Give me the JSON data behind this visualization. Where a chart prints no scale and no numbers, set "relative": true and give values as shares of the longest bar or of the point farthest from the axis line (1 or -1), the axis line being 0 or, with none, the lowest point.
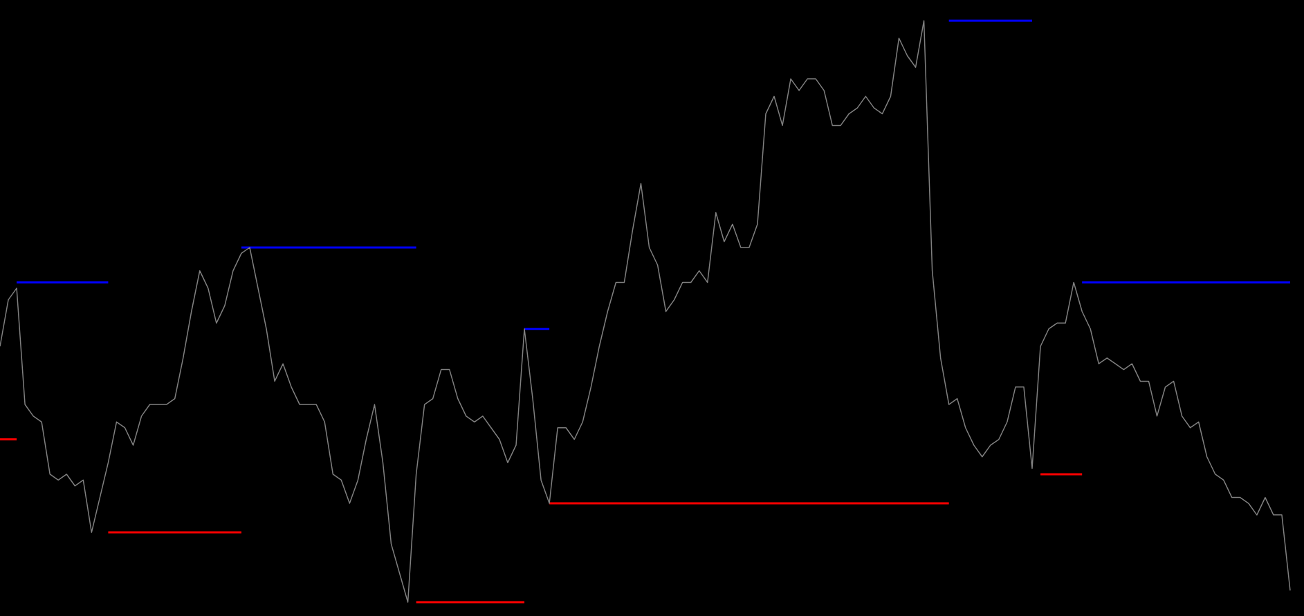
{
  "chart_data": {
    "type": "line",
    "relative": true,
    "tick_labels": false,
    "marker": "none",
    "line_style": "solid",
    "categories": [
      null,
      null,
      null,
      null,
      null,
      null,
      null,
      null,
      null,
      null,
      null,
      null,
      null,
      null,
      null,
      null,
      null,
      null,
      null,
      null,
      null,
      null,
      null,
      null,
      null,
      null,
      null,
      null,
      null,
      null,
      null,
      null,
      null,
      null,
      null,
      null,
      null,
      null,
      null,
      null,
      null,
      null,
      null,
      null,
      null,
      null,
      null,
      null,
      null,
      null,
      null,
      null,
      null,
      null,
      null,
      null,
      null,
      null,
      null,
      null,
      null,
      null,
      null,
      null,
      null,
      null,
      null,
      null,
      null,
      null,
      null,
      null,
      null,
      null,
      null,
      null,
      null,
      null,
      null,
      null,
      null,
      null,
      null,
      null,
      null,
      null,
      null,
      null,
      null,
      null,
      null,
      null,
      null,
      null,
      null,
      null,
      null,
      null,
      null,
      null,
      null,
      null,
      null,
      null,
      null,
      null,
      null,
      null,
      null,
      null,
      null,
      null,
      null,
      null,
      null,
      null,
      null,
      null,
      null,
      null,
      null,
      null,
      null,
      null,
      null,
      null,
      null,
      null,
      null,
      null,
      null,
      null,
      null,
      null,
      null,
      null,
      null,
      null,
      null,
      null,
      null,
      null,
      null,
      null,
      null,
      null,
      null,
      null,
      null,
      null,
      null,
      null,
      null,
      null,
      null,
      null
    ],
    "series": [
      {
        "color": "#808080",
        "values": [
          0.44,
          0.52,
          0.54,
          0.34,
          0.32,
          0.31,
          0.22,
          0.21,
          0.22,
          0.2,
          0.21,
          0.12,
          0.18,
          0.24,
          0.31,
          0.3,
          0.27,
          0.32,
          0.34,
          0.34,
          0.34,
          0.35,
          0.42,
          0.5,
          0.57,
          0.54,
          0.48,
          0.51,
          0.57,
          0.6,
          0.61,
          0.54,
          0.47,
          0.38,
          0.41,
          0.37,
          0.34,
          0.34,
          0.34,
          0.31,
          0.22,
          0.21,
          0.17,
          0.21,
          0.28,
          0.34,
          0.24,
          0.1,
          0.05,
          0,
          0.22,
          0.34,
          0.35,
          0.4,
          0.4,
          0.35,
          0.32,
          0.31,
          0.32,
          0.3,
          0.28,
          0.24,
          0.27,
          0.47,
          0.35,
          0.21,
          0.17,
          0.3,
          0.3,
          0.28,
          0.31,
          0.37,
          0.44,
          0.5,
          0.55,
          0.55,
          0.64,
          0.72,
          0.61,
          0.58,
          0.5,
          0.52,
          0.55,
          0.55,
          0.57,
          0.55,
          0.67,
          0.62,
          0.65,
          0.61,
          0.61,
          0.65,
          0.84,
          0.87,
          0.82,
          0.9,
          0.88,
          0.9,
          0.9,
          0.88,
          0.82,
          0.82,
          0.84,
          0.85,
          0.87,
          0.85,
          0.84,
          0.87,
          0.97,
          0.94,
          0.92,
          1,
          0.57,
          0.42,
          0.34,
          0.35,
          0.3,
          0.27,
          0.25,
          0.27,
          0.28,
          0.31,
          0.37,
          0.37,
          0.23,
          0.44,
          0.47,
          0.48,
          0.48,
          0.55,
          0.5,
          0.47,
          0.41,
          0.42,
          0.41,
          0.4,
          0.41,
          0.38,
          0.38,
          0.32,
          0.37,
          0.38,
          0.32,
          0.3,
          0.31,
          0.25,
          0.22,
          0.21,
          0.18,
          0.18,
          0.17,
          0.15,
          0.18,
          0.15,
          0.15,
          0.02
        ]
      },
      {
        "color": "#0000ff",
        "values": [
          null,
          null,
          0.55,
          0.55,
          0.55,
          0.55,
          0.55,
          0.55,
          0.55,
          0.55,
          0.55,
          0.55,
          0.55,
          0.55,
          null,
          null,
          null,
          null,
          null,
          null,
          null,
          null,
          null,
          null,
          null,
          null,
          null,
          null,
          null,
          0.61,
          0.61,
          0.61,
          0.61,
          0.61,
          0.61,
          0.61,
          0.61,
          0.61,
          0.61,
          0.61,
          0.61,
          0.61,
          0.61,
          0.61,
          0.61,
          0.61,
          0.61,
          0.61,
          0.61,
          0.61,
          0.61,
          null,
          null,
          null,
          null,
          null,
          null,
          null,
          null,
          null,
          null,
          null,
          null,
          0.47,
          0.47,
          0.47,
          0.47,
          null,
          null,
          null,
          null,
          null,
          null,
          null,
          null,
          null,
          null,
          null,
          null,
          null,
          null,
          null,
          null,
          null,
          null,
          null,
          null,
          null,
          null,
          null,
          null,
          null,
          null,
          null,
          null,
          null,
          null,
          null,
          null,
          null,
          null,
          null,
          null,
          null,
          null,
          null,
          null,
          null,
          null,
          null,
          null,
          null,
          null,
          null,
          1,
          1,
          1,
          1,
          1,
          1,
          1,
          1,
          1,
          1,
          1,
          null,
          null,
          null,
          null,
          null,
          0.55,
          0.55,
          0.55,
          0.55,
          0.55,
          0.55,
          0.55,
          0.55,
          0.55,
          0.55,
          0.55,
          0.55,
          0.55,
          0.55,
          0.55,
          0.55,
          0.55,
          0.55,
          0.55,
          0.55,
          0.55,
          0.55,
          0.55,
          0.55,
          0.55,
          0.55
        ]
      },
      {
        "color": "#ff0000",
        "values": [
          0.28,
          0.28,
          0.28,
          null,
          null,
          null,
          null,
          null,
          null,
          null,
          null,
          null,
          null,
          0.12,
          0.12,
          0.12,
          0.12,
          0.12,
          0.12,
          0.12,
          0.12,
          0.12,
          0.12,
          0.12,
          0.12,
          0.12,
          0.12,
          0.12,
          0.12,
          0.12,
          null,
          null,
          null,
          null,
          null,
          null,
          null,
          null,
          null,
          null,
          null,
          null,
          null,
          null,
          null,
          null,
          null,
          null,
          null,
          null,
          0,
          0,
          0,
          0,
          0,
          0,
          0,
          0,
          0,
          0,
          0,
          0,
          0,
          0,
          null,
          null,
          0.17,
          0.17,
          0.17,
          0.17,
          0.17,
          0.17,
          0.17,
          0.17,
          0.17,
          0.17,
          0.17,
          0.17,
          0.17,
          0.17,
          0.17,
          0.17,
          0.17,
          0.17,
          0.17,
          0.17,
          0.17,
          0.17,
          0.17,
          0.17,
          0.17,
          0.17,
          0.17,
          0.17,
          0.17,
          0.17,
          0.17,
          0.17,
          0.17,
          0.17,
          0.17,
          0.17,
          0.17,
          0.17,
          0.17,
          0.17,
          0.17,
          0.17,
          0.17,
          0.17,
          0.17,
          0.17,
          0.17,
          0.17,
          0.17,
          null,
          null,
          null,
          null,
          null,
          null,
          null,
          null,
          null,
          null,
          0.22,
          0.22,
          0.22,
          0.22,
          0.22,
          0.22,
          null,
          null,
          null,
          null,
          null,
          null,
          null,
          null,
          null,
          null,
          null,
          null,
          null,
          null,
          null,
          null,
          null,
          null,
          null,
          null,
          null,
          null,
          null,
          null,
          null
        ]
      }
    ]
  }
}
